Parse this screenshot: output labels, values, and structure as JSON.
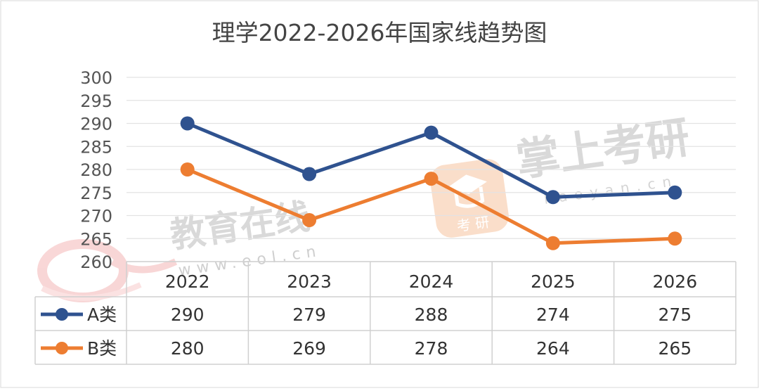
{
  "chart_data": {
    "type": "line",
    "title": "理学2022-2026年国家线趋势图",
    "categories": [
      "2022",
      "2023",
      "2024",
      "2025",
      "2026"
    ],
    "ylim": [
      260,
      300
    ],
    "yticks": [
      300,
      295,
      290,
      285,
      280,
      275,
      270,
      265,
      260
    ],
    "grid": true,
    "legend": "data-table",
    "series": [
      {
        "name": "A类",
        "values": [
          290,
          279,
          288,
          274,
          275
        ],
        "color": "#2f528f"
      },
      {
        "name": "B类",
        "values": [
          280,
          269,
          278,
          264,
          265
        ],
        "color": "#ed7d31"
      }
    ]
  },
  "watermarks": {
    "eol_name": "教育在线",
    "eol_url": "www.eol.cn",
    "kaoyan_name": "掌上考研",
    "kaoyan_url": "kaoyan.cn",
    "kaoyan_badge": "考 研"
  }
}
